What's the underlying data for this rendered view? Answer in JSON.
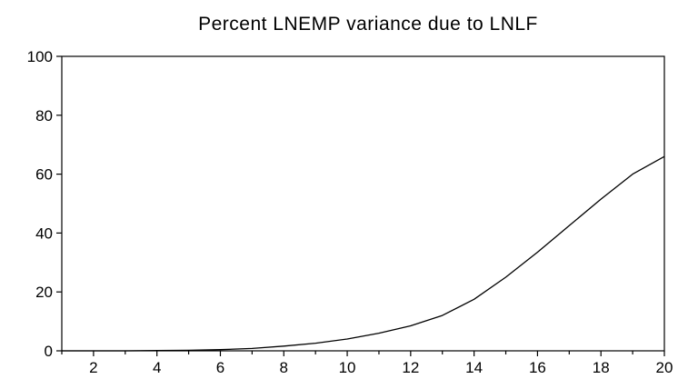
{
  "chart_data": {
    "type": "line",
    "title": "Percent LNEMP variance due to LNLF",
    "xlabel": "",
    "ylabel": "",
    "xlim": [
      1,
      20
    ],
    "ylim": [
      0,
      100
    ],
    "x_ticks": [
      2,
      4,
      6,
      8,
      10,
      12,
      14,
      16,
      18,
      20
    ],
    "y_ticks": [
      0,
      20,
      40,
      60,
      80,
      100
    ],
    "grid": false,
    "legend": "none",
    "series": [
      {
        "x": [
          1,
          2,
          3,
          4,
          5,
          6,
          7,
          8,
          9,
          10,
          11,
          12,
          13,
          14,
          15,
          16,
          17,
          18,
          19,
          20
        ],
        "values": [
          0,
          0,
          0,
          0.1,
          0.2,
          0.4,
          0.8,
          1.6,
          2.6,
          4.0,
          6.0,
          8.5,
          12.0,
          17.5,
          25.0,
          33.5,
          42.5,
          51.5,
          60.0,
          66.0
        ]
      }
    ],
    "colors": {
      "line": "#000000",
      "axis": "#000000",
      "background": "#ffffff"
    }
  }
}
